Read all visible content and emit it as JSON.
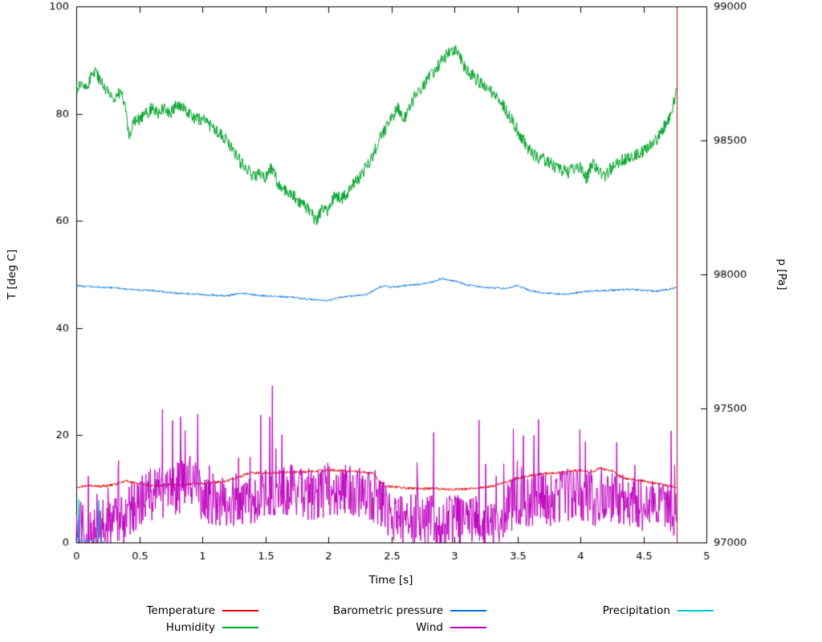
{
  "chart_data": {
    "type": "line",
    "title": "",
    "xlabel": "Time [s]",
    "ylabel_left": "T [deg C]",
    "ylabel_right": "p [Pa]",
    "xlim": [
      0,
      5
    ],
    "ylim_left": [
      0,
      100
    ],
    "ylim_right": [
      97000,
      99000
    ],
    "x_ticks": [
      0,
      0.5,
      1,
      1.5,
      2,
      2.5,
      3,
      3.5,
      4,
      4.5,
      5
    ],
    "x_tick_labels": [
      "0",
      "0.5",
      "1",
      "1.5",
      "2",
      "2.5",
      "3",
      "3.5",
      "4",
      "4.5",
      "5"
    ],
    "y_ticks_left": [
      0,
      20,
      40,
      60,
      80,
      100
    ],
    "y_tick_labels_left": [
      "0",
      "20",
      "40",
      "60",
      "80",
      "100"
    ],
    "y_ticks_right": [
      97000,
      97500,
      98000,
      98500,
      99000
    ],
    "y_tick_labels_right": [
      "97000",
      "97500",
      "98000",
      "98500",
      "99000"
    ],
    "grid": false,
    "legend_position": "bottom",
    "series": [
      {
        "name": "Temperature",
        "color": "#e00000",
        "axis": "left",
        "noise": 0.25,
        "anchors": [
          [
            0,
            10.3
          ],
          [
            0.1,
            10.6
          ],
          [
            0.2,
            10.5
          ],
          [
            0.3,
            10.8
          ],
          [
            0.35,
            11.2
          ],
          [
            0.4,
            11.5
          ],
          [
            0.45,
            11.2
          ],
          [
            0.5,
            11.0
          ],
          [
            0.6,
            10.5
          ],
          [
            0.7,
            10.7
          ],
          [
            0.8,
            10.8
          ],
          [
            0.9,
            10.9
          ],
          [
            1.0,
            11.0
          ],
          [
            1.1,
            11.2
          ],
          [
            1.2,
            11.5
          ],
          [
            1.3,
            12.3
          ],
          [
            1.35,
            12.8
          ],
          [
            1.4,
            13.0
          ],
          [
            1.5,
            12.9
          ],
          [
            1.6,
            13.0
          ],
          [
            1.7,
            13.1
          ],
          [
            1.8,
            13.2
          ],
          [
            1.9,
            13.3
          ],
          [
            2.0,
            13.5
          ],
          [
            2.1,
            13.4
          ],
          [
            2.2,
            13.3
          ],
          [
            2.3,
            13.1
          ],
          [
            2.35,
            12.9
          ],
          [
            2.4,
            11.5
          ],
          [
            2.45,
            10.6
          ],
          [
            2.5,
            10.4
          ],
          [
            2.6,
            10.2
          ],
          [
            2.7,
            10.1
          ],
          [
            2.8,
            10.1
          ],
          [
            2.9,
            10.0
          ],
          [
            3.0,
            9.9
          ],
          [
            3.1,
            10.0
          ],
          [
            3.2,
            10.2
          ],
          [
            3.3,
            10.5
          ],
          [
            3.4,
            11.2
          ],
          [
            3.5,
            12.0
          ],
          [
            3.6,
            12.5
          ],
          [
            3.7,
            12.8
          ],
          [
            3.8,
            13.0
          ],
          [
            3.9,
            13.2
          ],
          [
            4.0,
            13.5
          ],
          [
            4.05,
            13.2
          ],
          [
            4.1,
            13.1
          ],
          [
            4.15,
            14.0
          ],
          [
            4.2,
            13.6
          ],
          [
            4.25,
            13.4
          ],
          [
            4.3,
            12.5
          ],
          [
            4.35,
            12.0
          ],
          [
            4.4,
            11.8
          ],
          [
            4.5,
            11.5
          ],
          [
            4.6,
            11.0
          ],
          [
            4.7,
            10.6
          ],
          [
            4.76,
            10.2
          ]
        ]
      },
      {
        "name": "Humidity",
        "color": "#00a428",
        "axis": "left",
        "noise": 1.2,
        "anchors": [
          [
            0,
            84
          ],
          [
            0.03,
            86
          ],
          [
            0.07,
            85
          ],
          [
            0.1,
            86
          ],
          [
            0.13,
            88
          ],
          [
            0.17,
            87
          ],
          [
            0.2,
            86
          ],
          [
            0.25,
            84
          ],
          [
            0.3,
            83
          ],
          [
            0.35,
            84
          ],
          [
            0.38,
            82
          ],
          [
            0.42,
            76
          ],
          [
            0.45,
            78
          ],
          [
            0.5,
            79
          ],
          [
            0.55,
            80
          ],
          [
            0.6,
            81
          ],
          [
            0.65,
            80
          ],
          [
            0.7,
            81
          ],
          [
            0.75,
            80
          ],
          [
            0.8,
            82
          ],
          [
            0.85,
            81
          ],
          [
            0.9,
            80
          ],
          [
            0.95,
            79
          ],
          [
            1.0,
            79
          ],
          [
            1.05,
            78
          ],
          [
            1.1,
            77
          ],
          [
            1.15,
            76
          ],
          [
            1.2,
            75
          ],
          [
            1.25,
            73
          ],
          [
            1.3,
            71
          ],
          [
            1.35,
            70
          ],
          [
            1.4,
            68
          ],
          [
            1.45,
            69
          ],
          [
            1.5,
            68
          ],
          [
            1.55,
            70
          ],
          [
            1.6,
            67
          ],
          [
            1.65,
            66
          ],
          [
            1.7,
            65
          ],
          [
            1.75,
            64
          ],
          [
            1.8,
            63
          ],
          [
            1.85,
            62
          ],
          [
            1.9,
            60
          ],
          [
            1.95,
            62
          ],
          [
            2.0,
            62
          ],
          [
            2.05,
            65
          ],
          [
            2.1,
            64
          ],
          [
            2.15,
            65
          ],
          [
            2.2,
            67
          ],
          [
            2.25,
            68
          ],
          [
            2.3,
            70
          ],
          [
            2.35,
            72
          ],
          [
            2.4,
            75
          ],
          [
            2.45,
            77
          ],
          [
            2.5,
            79
          ],
          [
            2.55,
            81
          ],
          [
            2.6,
            79
          ],
          [
            2.65,
            81
          ],
          [
            2.7,
            84
          ],
          [
            2.75,
            85
          ],
          [
            2.8,
            87
          ],
          [
            2.85,
            88
          ],
          [
            2.9,
            90
          ],
          [
            2.95,
            91
          ],
          [
            3.0,
            92
          ],
          [
            3.05,
            90
          ],
          [
            3.1,
            88
          ],
          [
            3.15,
            87
          ],
          [
            3.2,
            86
          ],
          [
            3.25,
            85
          ],
          [
            3.3,
            84
          ],
          [
            3.35,
            83
          ],
          [
            3.4,
            81
          ],
          [
            3.45,
            79
          ],
          [
            3.5,
            77
          ],
          [
            3.55,
            75
          ],
          [
            3.6,
            73
          ],
          [
            3.65,
            72
          ],
          [
            3.7,
            71.5
          ],
          [
            3.75,
            71
          ],
          [
            3.8,
            70
          ],
          [
            3.85,
            69.5
          ],
          [
            3.9,
            69
          ],
          [
            3.95,
            70
          ],
          [
            4.0,
            70
          ],
          [
            4.05,
            68
          ],
          [
            4.1,
            71
          ],
          [
            4.15,
            69
          ],
          [
            4.2,
            68.5
          ],
          [
            4.25,
            70
          ],
          [
            4.3,
            71
          ],
          [
            4.35,
            71.5
          ],
          [
            4.4,
            72
          ],
          [
            4.45,
            72.5
          ],
          [
            4.5,
            73
          ],
          [
            4.55,
            74
          ],
          [
            4.6,
            75
          ],
          [
            4.65,
            77
          ],
          [
            4.7,
            79
          ],
          [
            4.73,
            81
          ],
          [
            4.76,
            84
          ]
        ]
      },
      {
        "name": "Barometric pressure",
        "color": "#0072e0",
        "axis": "right",
        "noise": 3.5,
        "anchors": [
          [
            0,
            97958
          ],
          [
            0.1,
            97955
          ],
          [
            0.2,
            97952
          ],
          [
            0.3,
            97950
          ],
          [
            0.4,
            97945
          ],
          [
            0.5,
            97942
          ],
          [
            0.6,
            97940
          ],
          [
            0.7,
            97935
          ],
          [
            0.8,
            97930
          ],
          [
            0.9,
            97928
          ],
          [
            1.0,
            97925
          ],
          [
            1.1,
            97922
          ],
          [
            1.2,
            97920
          ],
          [
            1.3,
            97930
          ],
          [
            1.4,
            97925
          ],
          [
            1.5,
            97920
          ],
          [
            1.6,
            97918
          ],
          [
            1.7,
            97915
          ],
          [
            1.8,
            97910
          ],
          [
            1.9,
            97905
          ],
          [
            2.0,
            97903
          ],
          [
            2.1,
            97915
          ],
          [
            2.2,
            97920
          ],
          [
            2.3,
            97925
          ],
          [
            2.4,
            97950
          ],
          [
            2.45,
            97958
          ],
          [
            2.5,
            97952
          ],
          [
            2.6,
            97958
          ],
          [
            2.7,
            97962
          ],
          [
            2.8,
            97970
          ],
          [
            2.85,
            97975
          ],
          [
            2.9,
            97985
          ],
          [
            2.95,
            97980
          ],
          [
            3.0,
            97975
          ],
          [
            3.1,
            97962
          ],
          [
            3.2,
            97955
          ],
          [
            3.3,
            97950
          ],
          [
            3.4,
            97948
          ],
          [
            3.5,
            97958
          ],
          [
            3.6,
            97940
          ],
          [
            3.7,
            97932
          ],
          [
            3.8,
            97928
          ],
          [
            3.9,
            97925
          ],
          [
            4.0,
            97935
          ],
          [
            4.1,
            97938
          ],
          [
            4.2,
            97940
          ],
          [
            4.3,
            97942
          ],
          [
            4.4,
            97945
          ],
          [
            4.5,
            97940
          ],
          [
            4.6,
            97938
          ],
          [
            4.7,
            97945
          ],
          [
            4.76,
            97950
          ]
        ]
      },
      {
        "name": "Wind",
        "color": "#bf00bf",
        "axis": "left",
        "noise": 5,
        "spike_chance": 0.05,
        "spike_amp": 16,
        "clamp_min": 0,
        "anchors": [
          [
            0,
            3
          ],
          [
            0.1,
            3
          ],
          [
            0.2,
            3
          ],
          [
            0.3,
            3.5
          ],
          [
            0.4,
            5
          ],
          [
            0.5,
            8
          ],
          [
            0.6,
            9
          ],
          [
            0.7,
            9
          ],
          [
            0.8,
            10
          ],
          [
            0.9,
            12
          ],
          [
            1.0,
            9
          ],
          [
            1.1,
            8
          ],
          [
            1.2,
            8
          ],
          [
            1.3,
            8
          ],
          [
            1.4,
            8
          ],
          [
            1.5,
            9
          ],
          [
            1.6,
            9
          ],
          [
            1.7,
            10
          ],
          [
            1.8,
            9
          ],
          [
            1.9,
            9
          ],
          [
            2.0,
            10
          ],
          [
            2.1,
            10
          ],
          [
            2.2,
            9
          ],
          [
            2.3,
            9
          ],
          [
            2.4,
            8
          ],
          [
            2.5,
            5
          ],
          [
            2.6,
            4
          ],
          [
            2.7,
            4
          ],
          [
            2.8,
            4
          ],
          [
            2.9,
            3.5
          ],
          [
            3.0,
            4
          ],
          [
            3.1,
            4
          ],
          [
            3.2,
            3.5
          ],
          [
            3.3,
            4
          ],
          [
            3.4,
            6
          ],
          [
            3.5,
            8
          ],
          [
            3.6,
            8
          ],
          [
            3.7,
            8
          ],
          [
            3.8,
            8
          ],
          [
            3.9,
            9
          ],
          [
            4.0,
            9
          ],
          [
            4.1,
            8
          ],
          [
            4.2,
            8
          ],
          [
            4.3,
            8
          ],
          [
            4.4,
            8
          ],
          [
            4.5,
            7
          ],
          [
            4.6,
            7
          ],
          [
            4.7,
            6
          ],
          [
            4.76,
            5
          ]
        ]
      },
      {
        "name": "Precipitation",
        "color": "#00c8d0",
        "axis": "left",
        "noise": 0.2,
        "clamp_min": 0,
        "anchors": [
          [
            0,
            0.3
          ],
          [
            0.015,
            0.3
          ],
          [
            0.02,
            8
          ],
          [
            0.027,
            0.4
          ],
          [
            0.17,
            0.4
          ],
          [
            0.18,
            8
          ],
          [
            0.19,
            0.4
          ],
          [
            0.21,
            0.2
          ],
          [
            0.22,
            0
          ]
        ]
      }
    ],
    "annotations": [
      {
        "type": "vline",
        "x": 4.762,
        "color": "#aa1111"
      }
    ]
  }
}
